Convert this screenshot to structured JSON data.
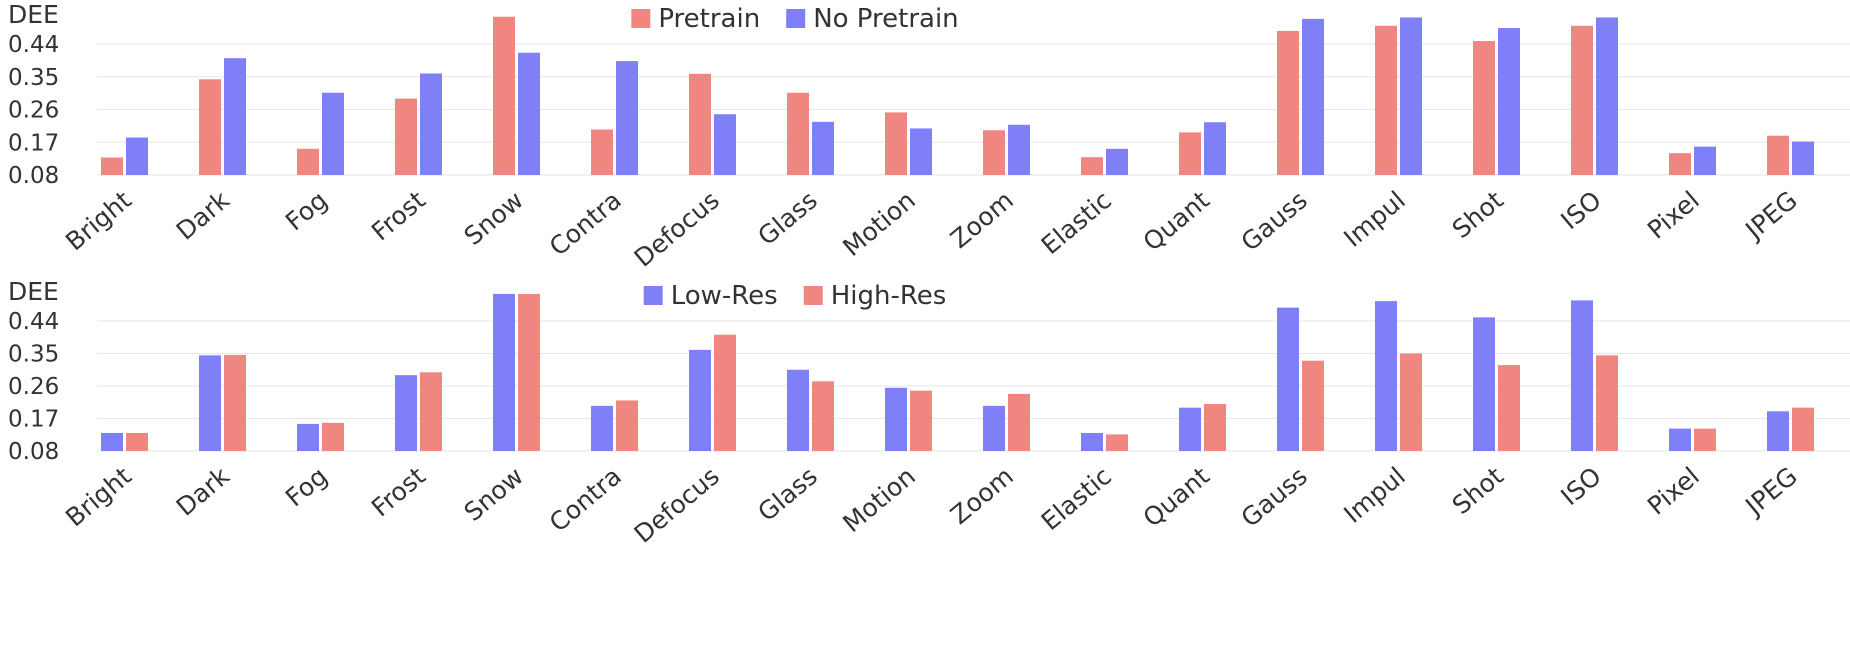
{
  "colors": {
    "red": "#ef8780",
    "blue": "#7f7ff8"
  },
  "chart_data": [
    {
      "type": "bar",
      "ylabel": "DEE",
      "yticks": [
        0.08,
        0.17,
        0.26,
        0.35,
        0.44
      ],
      "ylim": [
        0.08,
        0.52
      ],
      "categories": [
        "Bright",
        "Dark",
        "Fog",
        "Frost",
        "Snow",
        "Contra",
        "Defocus",
        "Glass",
        "Motion",
        "Zoom",
        "Elastic",
        "Quant",
        "Gauss",
        "Impul",
        "Shot",
        "ISO",
        "Pixel",
        "JPEG"
      ],
      "legend_position": "top-center",
      "series": [
        {
          "name": "Pretrain",
          "color": "red",
          "values": [
            0.128,
            0.343,
            0.152,
            0.29,
            0.515,
            0.205,
            0.358,
            0.306,
            0.252,
            0.203,
            0.129,
            0.197,
            0.476,
            0.49,
            0.448,
            0.49,
            0.14,
            0.188
          ]
        },
        {
          "name": "No Pretrain",
          "color": "blue",
          "values": [
            0.183,
            0.401,
            0.306,
            0.359,
            0.416,
            0.393,
            0.247,
            0.226,
            0.208,
            0.218,
            0.152,
            0.225,
            0.509,
            0.513,
            0.484,
            0.513,
            0.158,
            0.172
          ]
        }
      ]
    },
    {
      "type": "bar",
      "ylabel": "DEE",
      "yticks": [
        0.08,
        0.17,
        0.26,
        0.35,
        0.44
      ],
      "ylim": [
        0.08,
        0.52
      ],
      "categories": [
        "Bright",
        "Dark",
        "Fog",
        "Frost",
        "Snow",
        "Contra",
        "Defocus",
        "Glass",
        "Motion",
        "Zoom",
        "Elastic",
        "Quant",
        "Gauss",
        "Impul",
        "Shot",
        "ISO",
        "Pixel",
        "JPEG"
      ],
      "legend_position": "top-center",
      "series": [
        {
          "name": "Low-Res",
          "color": "blue",
          "values": [
            0.13,
            0.345,
            0.155,
            0.29,
            0.515,
            0.205,
            0.36,
            0.305,
            0.255,
            0.205,
            0.13,
            0.2,
            0.477,
            0.495,
            0.45,
            0.497,
            0.142,
            0.19
          ]
        },
        {
          "name": "High-Res",
          "color": "red",
          "values": [
            0.13,
            0.346,
            0.158,
            0.298,
            0.515,
            0.22,
            0.402,
            0.273,
            0.247,
            0.238,
            0.126,
            0.21,
            0.33,
            0.35,
            0.318,
            0.345,
            0.142,
            0.2
          ]
        }
      ]
    }
  ]
}
